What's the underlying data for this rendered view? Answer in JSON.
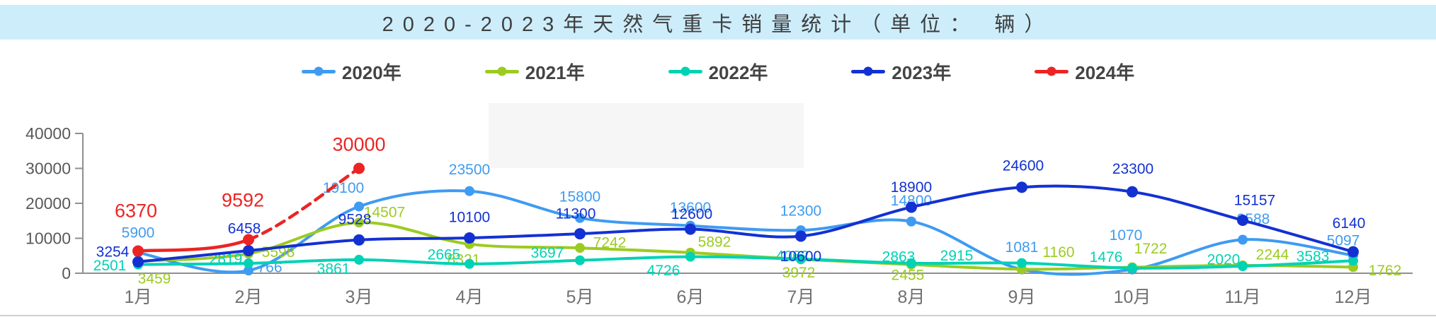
{
  "banner": {
    "title": "2020-2023年天然气重卡销量统计（单位： 辆）",
    "bg": "#cdedfb",
    "text_color": "#3f3f3f"
  },
  "chart_data": {
    "type": "line",
    "title": "2020-2023年天然气重卡销量统计（单位：辆）",
    "categories": [
      "1月",
      "2月",
      "3月",
      "4月",
      "5月",
      "6月",
      "7月",
      "8月",
      "9月",
      "10月",
      "11月",
      "12月"
    ],
    "y_axis": {
      "min": 0,
      "max": 40000,
      "step": 10000,
      "ticks": [
        "0",
        "10000",
        "20000",
        "30000",
        "40000"
      ]
    },
    "grid": false,
    "legend_position": "top",
    "smooth": true,
    "series": [
      {
        "name": "2020年",
        "color": "#3f9bf1",
        "line_style": "solid",
        "marker_r": 7,
        "label_size": 21,
        "values": [
          5900,
          766,
          19100,
          23500,
          15800,
          13600,
          12300,
          14800,
          1081,
          1070,
          9588,
          5097
        ],
        "label_offsets": [
          [
            0,
            -28
          ],
          [
            30,
            -4
          ],
          [
            -22,
            -26
          ],
          [
            0,
            -30
          ],
          [
            0,
            -30
          ],
          [
            0,
            -25
          ],
          [
            0,
            -27
          ],
          [
            0,
            -29
          ],
          [
            0,
            -31
          ],
          [
            -9,
            -48
          ],
          [
            15,
            -29
          ],
          [
            -14,
            -21
          ]
        ]
      },
      {
        "name": "2021年",
        "color": "#9ccb20",
        "line_style": "solid",
        "marker_r": 7,
        "label_size": 21,
        "values": [
          3459,
          5598,
          14507,
          8321,
          7242,
          5892,
          3972,
          2455,
          1160,
          1722,
          2244,
          1762
        ],
        "label_offsets": [
          [
            23,
            25
          ],
          [
            42,
            -2
          ],
          [
            36,
            -14
          ],
          [
            -8,
            22
          ],
          [
            42,
            -7
          ],
          [
            34,
            -15
          ],
          [
            -3,
            19
          ],
          [
            -5,
            15
          ],
          [
            52,
            -24
          ],
          [
            26,
            -26
          ],
          [
            42,
            -15
          ],
          [
            45,
            5
          ]
        ]
      },
      {
        "name": "2022年",
        "color": "#00d2b4",
        "line_style": "solid",
        "marker_r": 7,
        "label_size": 21,
        "values": [
          2501,
          2819,
          3861,
          2665,
          3697,
          4726,
          4062,
          2863,
          2915,
          1476,
          2020,
          3583
        ],
        "label_offsets": [
          [
            -40,
            2
          ],
          [
            -32,
            -6
          ],
          [
            -36,
            13
          ],
          [
            -36,
            -13
          ],
          [
            -46,
            -10
          ],
          [
            -38,
            20
          ],
          [
            -12,
            -4
          ],
          [
            -18,
            -9
          ],
          [
            -92,
            -10
          ],
          [
            -37,
            -15
          ],
          [
            -27,
            -9
          ],
          [
            -57,
            -6
          ]
        ]
      },
      {
        "name": "2023年",
        "color": "#1331d2",
        "line_style": "solid",
        "marker_r": 8,
        "label_size": 21,
        "values": [
          3254,
          6458,
          9528,
          10100,
          11300,
          12600,
          10600,
          18900,
          24600,
          23300,
          15157,
          6140
        ],
        "label_offsets": [
          [
            -36,
            -14
          ],
          [
            -6,
            -31
          ],
          [
            -6,
            -29
          ],
          [
            0,
            -29
          ],
          [
            -6,
            -28
          ],
          [
            2,
            -21
          ],
          [
            0,
            29
          ],
          [
            0,
            -28
          ],
          [
            2,
            -30
          ],
          [
            1,
            -32
          ],
          [
            17,
            -28
          ],
          [
            -6,
            -40
          ]
        ]
      },
      {
        "name": "2024年",
        "color": "#ec2424",
        "line_style": "dashed_from_2nd_point",
        "dash_from": 1,
        "marker_r": 8,
        "label_size": 27,
        "values": [
          6370,
          9592,
          30000,
          null,
          null,
          null,
          null,
          null,
          null,
          null,
          null,
          null
        ],
        "label_offsets": [
          [
            -3,
            -57
          ],
          [
            -8,
            -56
          ],
          [
            0,
            -34
          ],
          null,
          null,
          null,
          null,
          null,
          null,
          null,
          null,
          null
        ]
      }
    ]
  }
}
